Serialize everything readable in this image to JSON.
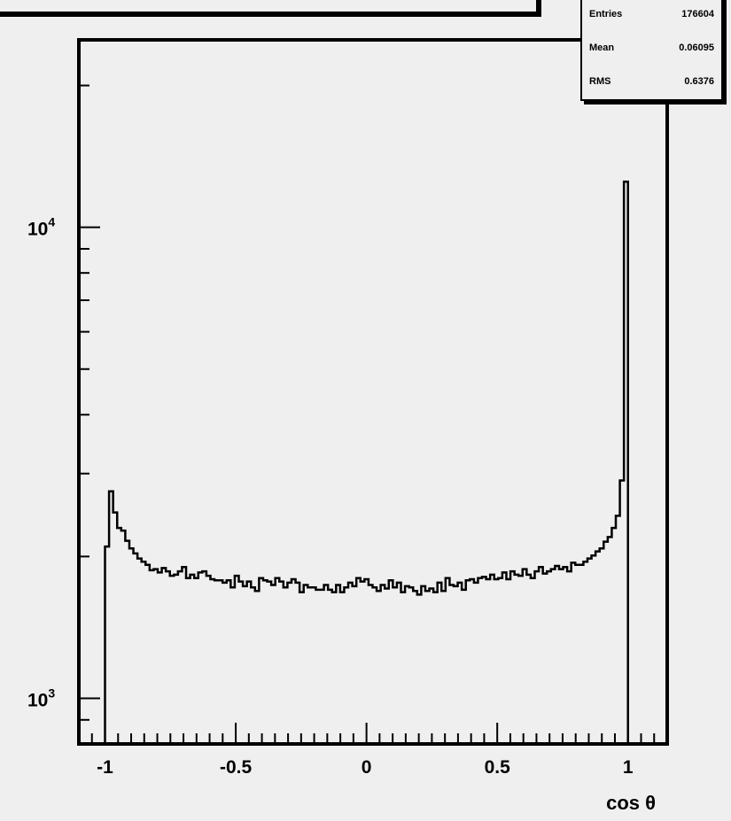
{
  "chart_data": {
    "type": "histogram",
    "title": "",
    "xlabel": "cos θ",
    "ylabel": "",
    "xlim": [
      -1.1,
      1.15
    ],
    "ylim": [
      800,
      25000
    ],
    "yscale": "log",
    "x_ticks": [
      "-1",
      "-0.5",
      "0",
      "0.5",
      "1"
    ],
    "y_ticks": [
      "10^3",
      "10^4"
    ],
    "bins": {
      "low": -1.0,
      "high": 1.0,
      "counts": [
        2100,
        2750,
        2480,
        2300,
        2270,
        2160,
        2080,
        2030,
        1980,
        1950,
        1920,
        1870,
        1880,
        1850,
        1890,
        1860,
        1820,
        1830,
        1860,
        1900,
        1800,
        1830,
        1800,
        1850,
        1860,
        1820,
        1790,
        1780,
        1780,
        1760,
        1780,
        1720,
        1820,
        1770,
        1730,
        1770,
        1720,
        1690,
        1800,
        1780,
        1770,
        1740,
        1800,
        1770,
        1720,
        1760,
        1790,
        1760,
        1680,
        1740,
        1720,
        1720,
        1700,
        1700,
        1740,
        1700,
        1680,
        1740,
        1680,
        1720,
        1760,
        1730,
        1800,
        1770,
        1790,
        1740,
        1720,
        1690,
        1740,
        1710,
        1780,
        1720,
        1760,
        1680,
        1730,
        1720,
        1690,
        1660,
        1730,
        1690,
        1710,
        1680,
        1760,
        1690,
        1800,
        1740,
        1730,
        1760,
        1700,
        1780,
        1790,
        1760,
        1800,
        1810,
        1790,
        1830,
        1790,
        1800,
        1850,
        1790,
        1860,
        1830,
        1820,
        1880,
        1830,
        1800,
        1860,
        1900,
        1840,
        1860,
        1880,
        1910,
        1880,
        1900,
        1860,
        1940,
        1920,
        1920,
        1950,
        1980,
        2010,
        2050,
        2080,
        2150,
        2200,
        2300,
        2440,
        2900,
        12500
      ]
    },
    "stats": {
      "entries_label": "Entries",
      "entries": "176604",
      "mean_label": "Mean",
      "mean": "0.06095",
      "rms_label": "RMS",
      "rms": "0.6376"
    }
  }
}
